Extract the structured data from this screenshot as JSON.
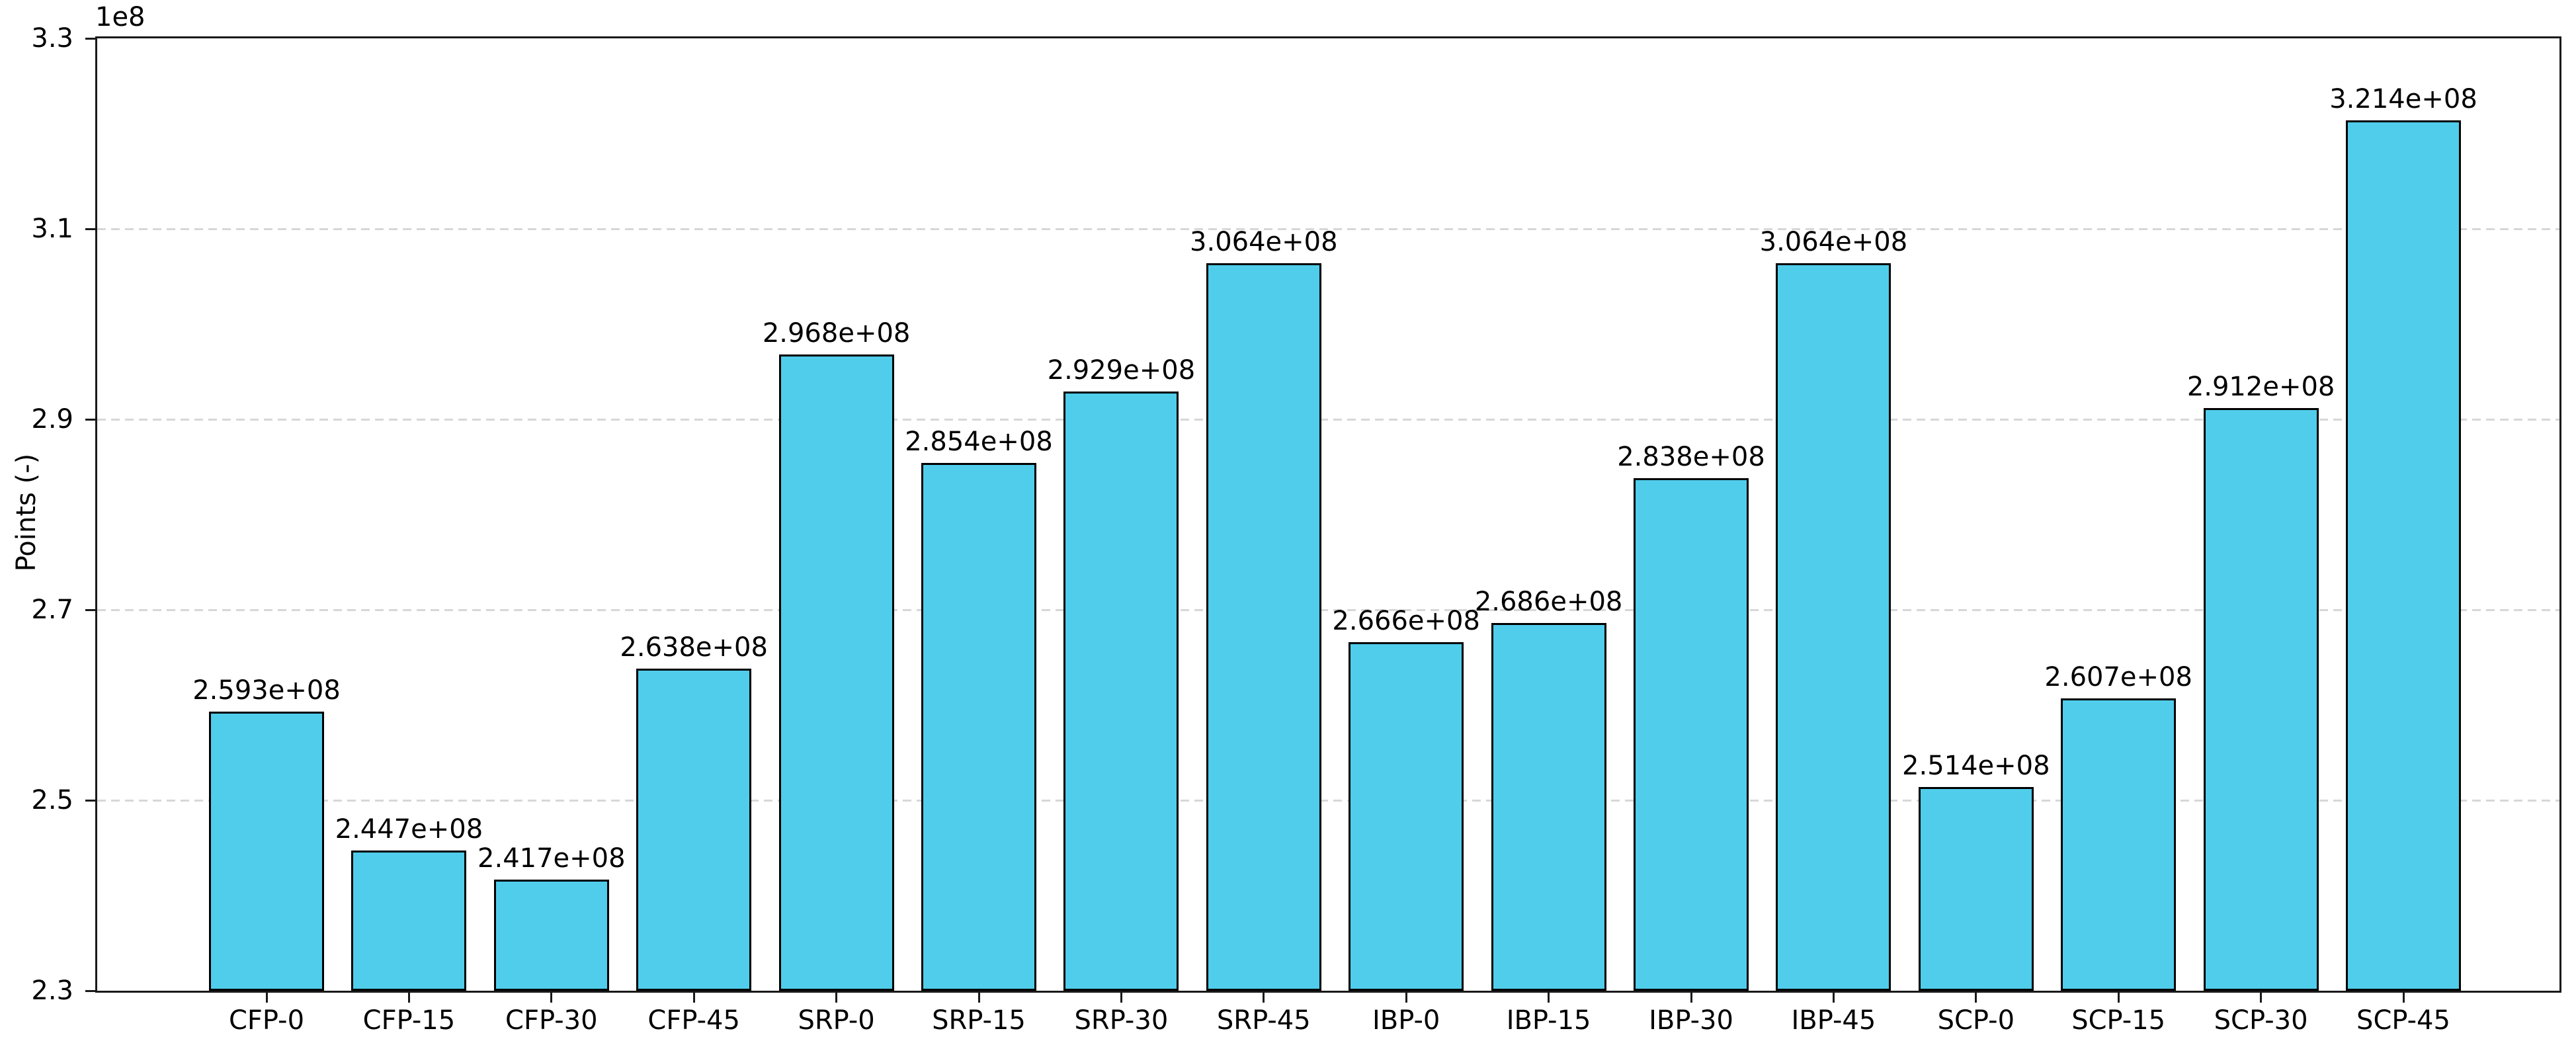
{
  "chart_data": {
    "type": "bar",
    "title": "",
    "xlabel": "",
    "ylabel": "Points (-)",
    "offset_label": "1e8",
    "categories": [
      "CFP-0",
      "CFP-15",
      "CFP-30",
      "CFP-45",
      "SRP-0",
      "SRP-15",
      "SRP-30",
      "SRP-45",
      "IBP-0",
      "IBP-15",
      "IBP-30",
      "IBP-45",
      "SCP-0",
      "SCP-15",
      "SCP-30",
      "SCP-45"
    ],
    "values": [
      259300000,
      244700000,
      241700000,
      263800000,
      296800000,
      285400000,
      292900000,
      306400000,
      266600000,
      268600000,
      283800000,
      306400000,
      251400000,
      260700000,
      291200000,
      321400000
    ],
    "value_labels": [
      "2.593e+08",
      "2.447e+08",
      "2.417e+08",
      "2.638e+08",
      "2.968e+08",
      "2.854e+08",
      "2.929e+08",
      "3.064e+08",
      "2.666e+08",
      "2.686e+08",
      "2.838e+08",
      "3.064e+08",
      "2.514e+08",
      "2.607e+08",
      "2.912e+08",
      "3.214e+08"
    ],
    "ylim": [
      230000000,
      330000000
    ],
    "yticks": [
      330000000,
      310000000,
      290000000,
      270000000,
      250000000,
      230000000
    ],
    "ytick_labels": [
      "3.3",
      "3.1",
      "2.9",
      "2.7",
      "2.5",
      "2.3"
    ],
    "grid": "horizontal-dashed",
    "legend_position": "none",
    "bar_color": "#50CDEB",
    "bar_edge_color": "#000000",
    "grid_color": "#D7D7D7"
  }
}
